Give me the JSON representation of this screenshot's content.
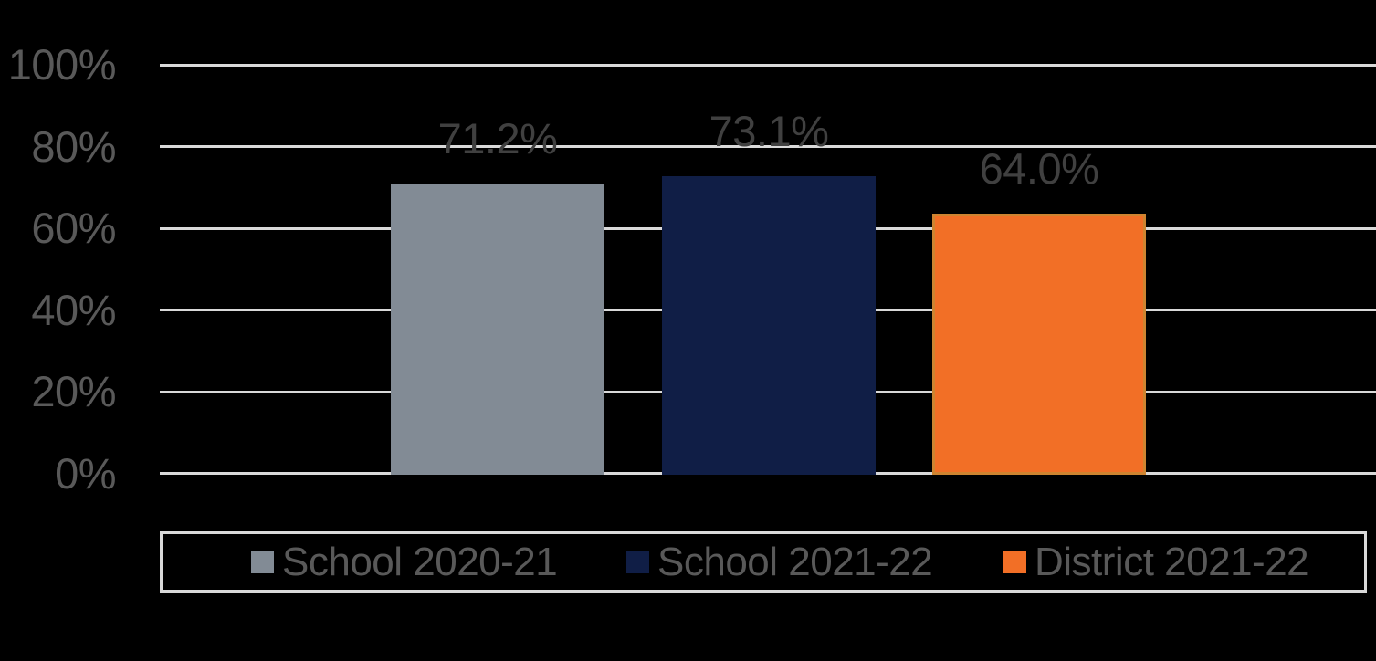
{
  "chart_data": {
    "type": "bar",
    "title": "",
    "ylim": [
      0,
      100
    ],
    "grid": true,
    "legend_position": "bottom",
    "y_ticks": [
      {
        "value": 100,
        "label": "100%"
      },
      {
        "value": 80,
        "label": "80%"
      },
      {
        "value": 60,
        "label": "60%"
      },
      {
        "value": 40,
        "label": "40%"
      },
      {
        "value": 20,
        "label": "20%"
      },
      {
        "value": 0,
        "label": "0%"
      }
    ],
    "series": [
      {
        "name": "School 2020-21",
        "value": 71.2,
        "label": "71.2%",
        "color": "#828B95"
      },
      {
        "name": "School 2021-22",
        "value": 73.1,
        "label": "73.1%",
        "color": "#101E46"
      },
      {
        "name": "District 2021-22",
        "value": 64.0,
        "label": "64.0%",
        "color": "#F26F26",
        "border_color": "#CE8430"
      }
    ]
  },
  "colors": {
    "background": "#000000",
    "gridline": "#D9D9D9",
    "tick_label": "#595959",
    "data_label": "#404040",
    "legend_border": "#D9D9D9",
    "legend_text": "#595959"
  }
}
